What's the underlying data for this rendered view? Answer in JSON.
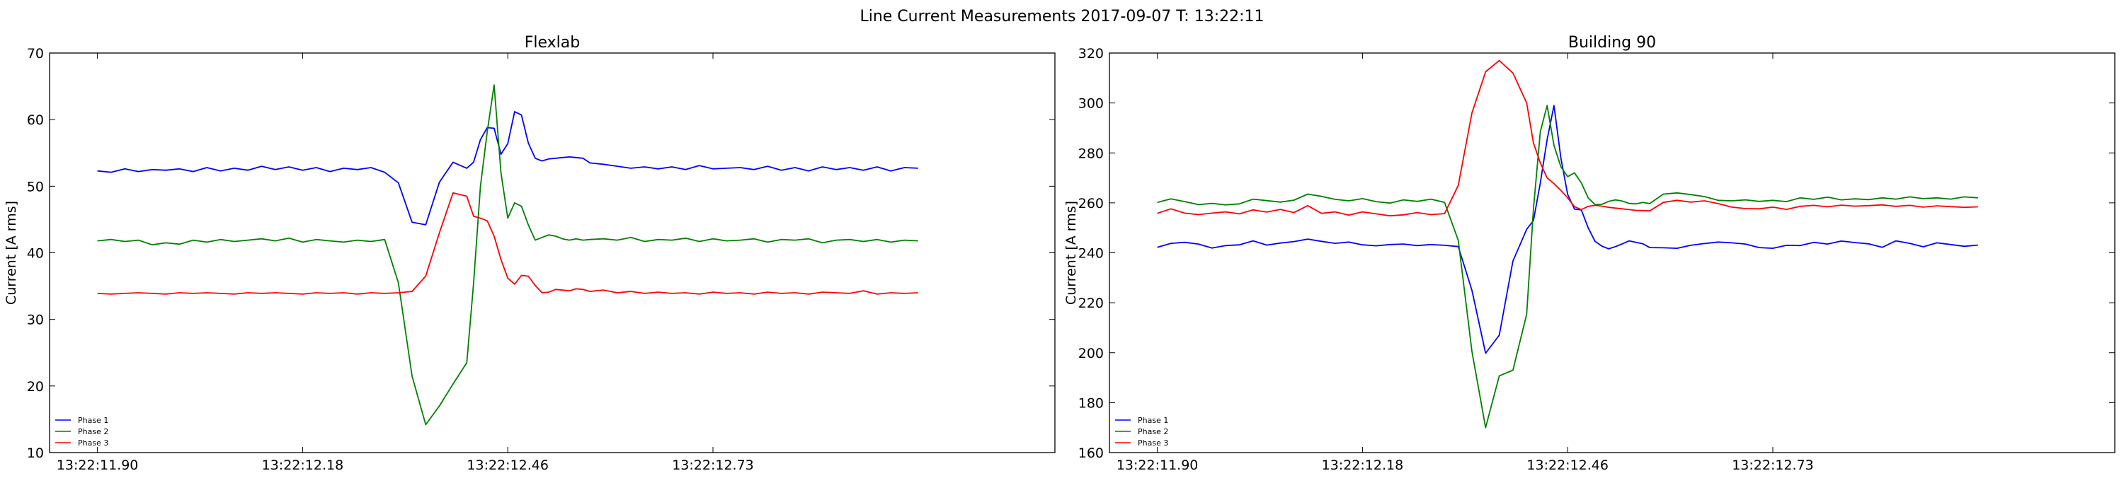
{
  "figure": {
    "title": "Line Current Measurements 2017-09-07 T: 13:22:11"
  },
  "chart_data": [
    {
      "type": "line",
      "title": "Flexlab",
      "xlabel": "",
      "ylabel": "Current [A rms]",
      "xlim": [
        -7,
        140
      ],
      "ylim": [
        10,
        70
      ],
      "yticks": [
        10,
        20,
        30,
        40,
        50,
        60,
        70
      ],
      "xticks": [
        {
          "x": 0,
          "label": "13:22:11.90"
        },
        {
          "x": 30,
          "label": "13:22:12.18"
        },
        {
          "x": 60,
          "label": "13:22:12.46"
        },
        {
          "x": 90,
          "label": "13:22:12.73"
        }
      ],
      "grid": false,
      "legend": "bottom-left",
      "x": [
        0,
        2,
        4,
        6,
        8,
        10,
        12,
        14,
        16,
        18,
        20,
        22,
        24,
        26,
        28,
        30,
        32,
        34,
        36,
        38,
        40,
        42,
        44,
        46,
        48,
        50,
        52,
        54,
        55,
        56,
        57,
        58,
        59,
        60,
        61,
        62,
        63,
        64,
        65,
        66,
        67,
        68,
        69,
        70,
        71,
        72,
        74,
        76,
        78,
        80,
        82,
        84,
        86,
        88,
        90,
        92,
        94,
        96,
        98,
        100,
        102,
        104,
        106,
        108,
        110,
        112,
        114,
        116,
        118,
        120
      ],
      "series": [
        {
          "name": "Phase 1",
          "color": "#0000ff",
          "values": [
            52.3,
            52.1,
            52.6,
            52.2,
            52.5,
            52.4,
            52.6,
            52.2,
            52.8,
            52.3,
            52.7,
            52.4,
            53.0,
            52.5,
            52.9,
            52.4,
            52.8,
            52.2,
            52.7,
            52.5,
            52.8,
            52.1,
            50.5,
            44.6,
            44.2,
            50.6,
            53.6,
            52.7,
            53.6,
            57.0,
            58.8,
            58.7,
            54.8,
            56.4,
            61.2,
            60.7,
            56.5,
            54.2,
            53.8,
            54.1,
            54.2,
            54.3,
            54.4,
            54.3,
            54.2,
            53.5,
            53.3,
            53.0,
            52.7,
            52.9,
            52.6,
            52.9,
            52.5,
            53.1,
            52.6,
            52.7,
            52.8,
            52.5,
            53.0,
            52.4,
            52.8,
            52.3,
            52.9,
            52.5,
            52.8,
            52.4,
            52.9,
            52.3,
            52.8,
            52.7
          ]
        },
        {
          "name": "Phase 2",
          "color": "#008000",
          "values": [
            41.8,
            42.0,
            41.7,
            41.9,
            41.2,
            41.5,
            41.3,
            41.9,
            41.6,
            42.0,
            41.7,
            41.9,
            42.1,
            41.8,
            42.2,
            41.6,
            42.0,
            41.8,
            41.6,
            41.9,
            41.7,
            42.0,
            35.5,
            21.5,
            14.2,
            17.0,
            20.3,
            23.5,
            35.4,
            50.0,
            58.2,
            65.2,
            52.0,
            45.2,
            47.5,
            47.0,
            44.2,
            41.9,
            42.3,
            42.7,
            42.5,
            42.1,
            41.9,
            42.1,
            41.9,
            42.0,
            42.1,
            41.9,
            42.3,
            41.7,
            42.0,
            41.9,
            42.2,
            41.7,
            42.1,
            41.8,
            41.9,
            42.1,
            41.6,
            42.0,
            41.9,
            42.1,
            41.5,
            41.9,
            42.0,
            41.7,
            42.0,
            41.6,
            41.9,
            41.8
          ]
        },
        {
          "name": "Phase 3",
          "color": "#ff0000",
          "values": [
            33.9,
            33.8,
            33.9,
            34.0,
            33.9,
            33.8,
            34.0,
            33.9,
            34.0,
            33.9,
            33.8,
            34.0,
            33.9,
            34.0,
            33.9,
            33.8,
            34.0,
            33.9,
            34.0,
            33.8,
            34.0,
            33.9,
            34.0,
            34.2,
            36.5,
            43.0,
            49.0,
            48.5,
            45.5,
            45.2,
            44.8,
            42.5,
            39.0,
            36.2,
            35.3,
            36.6,
            36.5,
            35.1,
            34.0,
            34.1,
            34.5,
            34.4,
            34.3,
            34.6,
            34.5,
            34.2,
            34.4,
            34.0,
            34.2,
            33.9,
            34.1,
            33.9,
            34.0,
            33.8,
            34.1,
            33.9,
            34.0,
            33.8,
            34.1,
            33.9,
            34.0,
            33.8,
            34.1,
            34.0,
            33.9,
            34.3,
            33.8,
            34.0,
            33.9,
            34.0
          ]
        }
      ]
    },
    {
      "type": "line",
      "title": "Building 90",
      "xlabel": "",
      "ylabel": "Current [A rms]",
      "xlim": [
        -7,
        140
      ],
      "ylim": [
        160,
        320
      ],
      "yticks": [
        160,
        180,
        200,
        220,
        240,
        260,
        280,
        300,
        320
      ],
      "xticks": [
        {
          "x": 0,
          "label": "13:22:11.90"
        },
        {
          "x": 30,
          "label": "13:22:12.18"
        },
        {
          "x": 60,
          "label": "13:22:12.46"
        },
        {
          "x": 90,
          "label": "13:22:12.73"
        }
      ],
      "grid": false,
      "legend": "bottom-left",
      "x": [
        0,
        2,
        4,
        6,
        8,
        10,
        12,
        14,
        16,
        18,
        20,
        22,
        24,
        26,
        28,
        30,
        32,
        34,
        36,
        38,
        40,
        42,
        44,
        46,
        48,
        50,
        52,
        54,
        55,
        56,
        57,
        58,
        59,
        60,
        61,
        62,
        63,
        64,
        65,
        66,
        67,
        68,
        69,
        70,
        71,
        72,
        74,
        76,
        78,
        80,
        82,
        84,
        86,
        88,
        90,
        92,
        94,
        96,
        98,
        100,
        102,
        104,
        106,
        108,
        110,
        112,
        114,
        116,
        118,
        120
      ],
      "series": [
        {
          "name": "Phase 1",
          "color": "#0000ff",
          "values": [
            242.2,
            243.8,
            244.2,
            243.5,
            241.9,
            242.9,
            243.2,
            244.8,
            243.1,
            243.9,
            244.5,
            245.5,
            244.6,
            243.8,
            244.3,
            243.2,
            242.8,
            243.3,
            243.5,
            242.9,
            243.3,
            243.0,
            242.5,
            225.0,
            199.8,
            207.0,
            236.7,
            249.4,
            252.9,
            268.0,
            285.3,
            299.0,
            278.0,
            263.4,
            257.5,
            257.2,
            250.0,
            244.6,
            242.7,
            241.6,
            242.5,
            243.6,
            244.8,
            244.2,
            243.6,
            242.1,
            242.0,
            241.8,
            243.0,
            243.7,
            244.3,
            244.0,
            243.5,
            242.1,
            241.8,
            243.0,
            242.9,
            244.2,
            243.5,
            244.7,
            244.1,
            243.6,
            242.2,
            244.8,
            243.8,
            242.4,
            244.0,
            243.3,
            242.6,
            243.1
          ]
        },
        {
          "name": "Phase 2",
          "color": "#008000",
          "values": [
            260.2,
            261.6,
            260.5,
            259.3,
            259.8,
            259.2,
            259.6,
            261.5,
            260.9,
            260.3,
            261.1,
            263.5,
            262.6,
            261.4,
            260.8,
            261.7,
            260.5,
            259.9,
            261.2,
            260.6,
            261.5,
            260.2,
            245.0,
            200.5,
            170.0,
            190.7,
            193.0,
            215.4,
            257.6,
            288.5,
            299.0,
            283.0,
            274.5,
            270.5,
            272.0,
            268.0,
            262.0,
            259.3,
            259.4,
            260.6,
            261.2,
            260.7,
            259.8,
            259.6,
            260.2,
            259.7,
            263.5,
            264.0,
            263.3,
            262.5,
            261.0,
            260.8,
            261.2,
            260.6,
            261.0,
            260.5,
            262.0,
            261.4,
            262.3,
            261.2,
            261.6,
            261.3,
            262.0,
            261.5,
            262.4,
            261.7,
            262.0,
            261.5,
            262.4,
            262.0
          ]
        },
        {
          "name": "Phase 3",
          "color": "#ff0000",
          "values": [
            255.8,
            257.6,
            255.9,
            255.3,
            255.9,
            256.4,
            255.6,
            257.2,
            256.3,
            257.4,
            256.1,
            258.9,
            255.8,
            256.4,
            255.1,
            256.4,
            255.6,
            254.8,
            255.2,
            256.1,
            255.3,
            255.7,
            267.0,
            296.0,
            312.5,
            317.0,
            312.0,
            300.0,
            284.0,
            276.0,
            270.0,
            267.7,
            265.0,
            262.0,
            258.5,
            257.3,
            258.6,
            259.0,
            258.7,
            258.2,
            257.9,
            257.6,
            257.3,
            257.0,
            256.9,
            256.8,
            260.2,
            261.0,
            260.3,
            260.8,
            259.7,
            258.3,
            257.7,
            257.6,
            258.3,
            257.4,
            258.6,
            259.0,
            258.4,
            259.1,
            258.7,
            258.9,
            259.2,
            258.6,
            259.0,
            258.3,
            258.8,
            258.5,
            258.2,
            258.4
          ]
        }
      ]
    }
  ]
}
